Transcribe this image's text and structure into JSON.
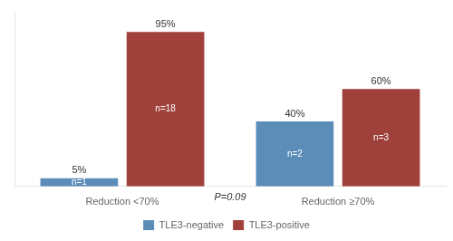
{
  "chart_data": {
    "type": "bar",
    "categories": [
      "Reduction <70%",
      "Reduction ≥70%"
    ],
    "series": [
      {
        "name": "TLE3-negative",
        "color": "#5b8db8",
        "values": [
          5,
          40
        ],
        "value_labels": [
          "5%",
          "40%"
        ],
        "n_labels": [
          "n=1",
          "n=2"
        ]
      },
      {
        "name": "TLE3-positive",
        "color": "#a0403a",
        "values": [
          95,
          60
        ],
        "value_labels": [
          "95%",
          "60%"
        ],
        "n_labels": [
          "n=18",
          "n=3"
        ]
      }
    ],
    "annotations": [
      "P=0.09"
    ],
    "ylim": [
      0,
      108
    ],
    "grid": false,
    "legend": "bottom",
    "data_labels": true,
    "tick_labels": "x"
  }
}
